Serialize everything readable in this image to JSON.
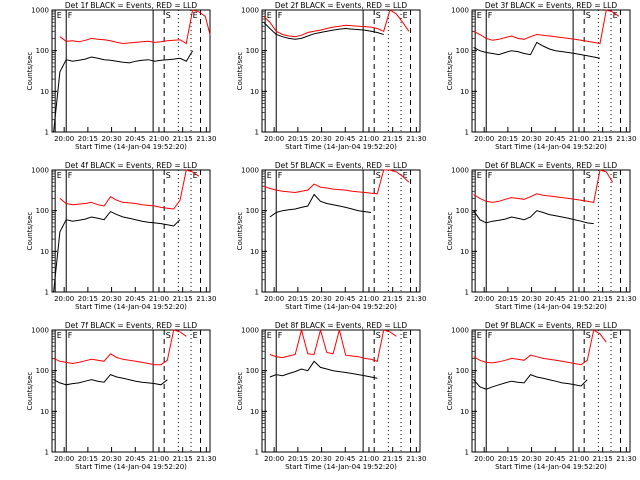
{
  "common": {
    "xlabel": "Start Time (14-Jan-04 19:52:20)",
    "ylabel": "Counts/sec",
    "x_ticks": [
      "20:00",
      "20:15",
      "20:30",
      "20:45",
      "21:00",
      "21:15",
      "21:30"
    ],
    "y_ticks": [
      "1",
      "10",
      "100",
      "1000"
    ],
    "marker_letters": [
      "E",
      "F",
      "S",
      "E"
    ],
    "colors": {
      "events": "#000000",
      "lld": "#ff0000"
    }
  },
  "chart_data": [
    {
      "type": "line",
      "title": "Det 1f BLACK = Events, RED = LLD",
      "yscale": "log",
      "ylim": [
        1,
        1000
      ],
      "xlim_minutes": [
        0,
        100
      ],
      "series": [
        {
          "values": [
            null,
            220,
            170,
            175,
            165,
            180,
            200,
            190,
            185,
            175,
            160,
            150,
            155,
            160,
            165,
            170,
            160,
            165,
            175,
            180,
            185,
            150,
            1000,
            900,
            700,
            250
          ]
        },
        {
          "values": [
            1,
            30,
            60,
            55,
            58,
            62,
            70,
            65,
            60,
            58,
            55,
            52,
            50,
            55,
            58,
            60,
            55,
            58,
            60,
            62,
            65,
            55,
            100
          ]
        }
      ]
    },
    {
      "type": "line",
      "title": "Det 2f BLACK = Events, RED = LLD",
      "yscale": "log",
      "ylim": [
        1,
        1000
      ],
      "xlim_minutes": [
        0,
        100
      ],
      "series": [
        {
          "values": [
            700,
            500,
            300,
            250,
            230,
            220,
            240,
            280,
            300,
            320,
            350,
            380,
            400,
            420,
            410,
            400,
            390,
            380,
            350,
            300,
            1000,
            800,
            500,
            300
          ]
        },
        {
          "values": [
            500,
            350,
            250,
            220,
            200,
            190,
            200,
            230,
            260,
            280,
            300,
            320,
            340,
            350,
            340,
            330,
            320,
            300,
            280,
            250
          ]
        }
      ]
    },
    {
      "type": "line",
      "title": "Det 3f BLACK = Events, RED = LLD",
      "yscale": "log",
      "ylim": [
        1,
        1000
      ],
      "xlim_minutes": [
        0,
        100
      ],
      "series": [
        {
          "values": [
            300,
            250,
            200,
            180,
            190,
            210,
            230,
            200,
            190,
            220,
            250,
            240,
            230,
            220,
            210,
            200,
            190,
            180,
            170,
            160,
            150,
            1000,
            900,
            700
          ]
        },
        {
          "values": [
            120,
            100,
            90,
            85,
            80,
            90,
            100,
            95,
            85,
            80,
            160,
            130,
            110,
            100,
            95,
            90,
            85,
            80,
            75,
            70,
            65
          ]
        }
      ]
    },
    {
      "type": "line",
      "title": "Det 4f BLACK = Events, RED = LLD",
      "yscale": "log",
      "ylim": [
        1,
        1000
      ],
      "xlim_minutes": [
        0,
        100
      ],
      "series": [
        {
          "values": [
            null,
            200,
            150,
            140,
            145,
            150,
            160,
            140,
            130,
            220,
            180,
            160,
            155,
            150,
            140,
            135,
            130,
            120,
            115,
            110,
            180,
            1000,
            900,
            700
          ]
        },
        {
          "values": [
            1,
            30,
            60,
            55,
            58,
            62,
            70,
            65,
            60,
            95,
            80,
            70,
            65,
            60,
            55,
            52,
            50,
            48,
            45,
            42,
            60
          ]
        }
      ]
    },
    {
      "type": "line",
      "title": "Det 5f BLACK = Events, RED = LLD",
      "yscale": "log",
      "ylim": [
        1,
        1000
      ],
      "xlim_minutes": [
        0,
        100
      ],
      "series": [
        {
          "values": [
            400,
            350,
            320,
            300,
            290,
            280,
            300,
            320,
            450,
            380,
            360,
            340,
            330,
            320,
            300,
            290,
            280,
            270,
            260,
            1000,
            1000,
            900,
            700,
            500
          ]
        },
        {
          "values": [
            null,
            70,
            90,
            100,
            105,
            110,
            120,
            130,
            250,
            170,
            150,
            140,
            130,
            120,
            110,
            100,
            95,
            90
          ]
        }
      ]
    },
    {
      "type": "line",
      "title": "Det 6f BLACK = Events, RED = LLD",
      "yscale": "log",
      "ylim": [
        1,
        1000
      ],
      "xlim_minutes": [
        0,
        100
      ],
      "series": [
        {
          "values": [
            250,
            200,
            170,
            160,
            170,
            190,
            210,
            200,
            190,
            220,
            260,
            240,
            230,
            220,
            210,
            200,
            190,
            180,
            170,
            160,
            1000,
            900,
            500
          ]
        },
        {
          "values": [
            100,
            60,
            50,
            55,
            58,
            62,
            70,
            65,
            60,
            70,
            100,
            90,
            80,
            75,
            70,
            65,
            60,
            55,
            50,
            48
          ]
        }
      ]
    },
    {
      "type": "line",
      "title": "Det 7f BLACK = Events, RED = LLD",
      "yscale": "log",
      "ylim": [
        1,
        1000
      ],
      "xlim_minutes": [
        0,
        100
      ],
      "series": [
        {
          "values": [
            200,
            170,
            160,
            150,
            160,
            175,
            190,
            180,
            170,
            260,
            210,
            190,
            180,
            170,
            160,
            150,
            140,
            140,
            180,
            1000,
            900,
            700
          ]
        },
        {
          "values": [
            60,
            50,
            45,
            48,
            50,
            55,
            60,
            55,
            52,
            80,
            70,
            65,
            60,
            55,
            52,
            50,
            48,
            45,
            60
          ]
        }
      ]
    },
    {
      "type": "line",
      "title": "Det 8f BLACK = Events, RED = LLD",
      "yscale": "log",
      "ylim": [
        1,
        1000
      ],
      "xlim_minutes": [
        0,
        100
      ],
      "series": [
        {
          "values": [
            null,
            250,
            220,
            210,
            230,
            250,
            1000,
            260,
            250,
            1000,
            280,
            260,
            1000,
            240,
            230,
            220,
            200,
            190,
            170,
            1000,
            900,
            700
          ]
        },
        {
          "values": [
            null,
            70,
            80,
            75,
            85,
            95,
            110,
            100,
            170,
            120,
            110,
            100,
            95,
            90,
            85,
            80,
            75,
            70,
            65
          ]
        }
      ]
    },
    {
      "type": "line",
      "title": "Det 9f BLACK = Events, RED = LLD",
      "yscale": "log",
      "ylim": [
        1,
        1000
      ],
      "xlim_minutes": [
        0,
        100
      ],
      "series": [
        {
          "values": [
            220,
            180,
            160,
            155,
            165,
            180,
            200,
            190,
            180,
            240,
            220,
            200,
            190,
            180,
            170,
            160,
            150,
            140,
            180,
            1000,
            800,
            500
          ]
        },
        {
          "values": [
            60,
            40,
            35,
            40,
            45,
            50,
            55,
            52,
            50,
            80,
            70,
            65,
            60,
            55,
            50,
            48,
            45,
            42,
            60
          ]
        }
      ]
    }
  ]
}
